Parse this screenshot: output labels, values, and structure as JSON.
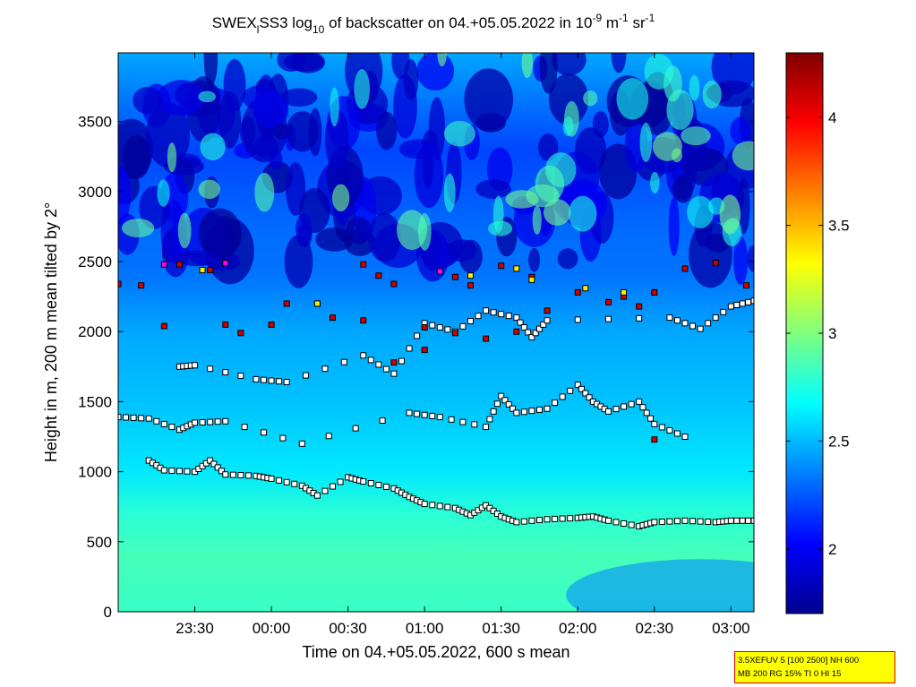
{
  "chart_data": {
    "type": "heatmap",
    "title_parts": {
      "prefix": "SWEX",
      "sub1": "l",
      "mid": "SS3 log",
      "sub2": "10",
      "rest": " of backscatter on 04.+05.05.2022 in 10",
      "exp1": "-9",
      "unit1": " m",
      "exp2": "-1",
      "unit2": " sr",
      "exp3": "-1"
    },
    "xlabel": "Time on 04.+05.05.2022, 600 s mean",
    "ylabel": "Height in m, 200 m mean tilted by 2°",
    "xlim_hours": [
      23.0,
      27.15
    ],
    "ylim": [
      0,
      3990
    ],
    "x_ticks": [
      {
        "hour": 23.5,
        "label": "23:30"
      },
      {
        "hour": 24.0,
        "label": "00:00"
      },
      {
        "hour": 24.5,
        "label": "00:30"
      },
      {
        "hour": 25.0,
        "label": "01:00"
      },
      {
        "hour": 25.5,
        "label": "01:30"
      },
      {
        "hour": 26.0,
        "label": "02:00"
      },
      {
        "hour": 26.5,
        "label": "02:30"
      },
      {
        "hour": 27.0,
        "label": "03:00"
      }
    ],
    "y_ticks": [
      0,
      500,
      1000,
      1500,
      2000,
      2500,
      3000,
      3500
    ],
    "colorbar": {
      "range": [
        1.7,
        4.3
      ],
      "ticks": [
        2,
        2.5,
        3,
        3.5,
        4
      ],
      "colormap": "jet"
    },
    "field_profile": [
      {
        "height": 0,
        "log_backscatter": 2.82
      },
      {
        "height": 400,
        "log_backscatter": 2.85
      },
      {
        "height": 700,
        "log_backscatter": 2.78
      },
      {
        "height": 1000,
        "log_backscatter": 2.62
      },
      {
        "height": 1500,
        "log_backscatter": 2.52
      },
      {
        "height": 2000,
        "log_backscatter": 2.45
      },
      {
        "height": 2400,
        "log_backscatter": 2.32
      },
      {
        "height": 2700,
        "log_backscatter": 2.3
      },
      {
        "height": 3300,
        "log_backscatter": 2.2
      },
      {
        "height": 3990,
        "log_backscatter": 2.45
      }
    ],
    "layer_markers": {
      "description": "detected aerosol/cloud layer heights (white, red, yellow, magenta squares)",
      "colors": {
        "white": "#ffffff",
        "red": "#d00000",
        "yellow": "#ffee00",
        "magenta": "#ff00ff"
      },
      "tracks": [
        {
          "name": "lowest layer",
          "color": "white",
          "points": [
            [
              23.2,
              1080
            ],
            [
              23.3,
              1010
            ],
            [
              23.5,
              1000
            ],
            [
              23.6,
              1080
            ],
            [
              23.7,
              980
            ],
            [
              23.9,
              970
            ],
            [
              24.0,
              950
            ],
            [
              24.2,
              900
            ],
            [
              24.3,
              830
            ],
            [
              24.5,
              960
            ],
            [
              24.6,
              930
            ],
            [
              24.8,
              880
            ],
            [
              24.9,
              820
            ],
            [
              25.0,
              770
            ],
            [
              25.2,
              740
            ],
            [
              25.3,
              690
            ],
            [
              25.4,
              760
            ],
            [
              25.5,
              680
            ],
            [
              25.6,
              640
            ],
            [
              25.8,
              660
            ],
            [
              26.0,
              670
            ],
            [
              26.1,
              680
            ],
            [
              26.2,
              650
            ],
            [
              26.4,
              610
            ],
            [
              26.5,
              640
            ],
            [
              26.7,
              650
            ],
            [
              26.9,
              640
            ],
            [
              27.0,
              650
            ],
            [
              27.15,
              650
            ]
          ]
        },
        {
          "name": "layer 1400 m",
          "color": "white",
          "points": [
            [
              23.0,
              1390
            ],
            [
              23.2,
              1380
            ],
            [
              23.4,
              1300
            ],
            [
              23.5,
              1350
            ],
            [
              23.7,
              1360
            ],
            [
              24.2,
              1200
            ],
            [
              24.9,
              1420
            ],
            [
              25.1,
              1390
            ],
            [
              25.4,
              1320
            ],
            [
              25.5,
              1540
            ],
            [
              25.6,
              1420
            ],
            [
              25.8,
              1450
            ],
            [
              26.0,
              1620
            ],
            [
              26.1,
              1500
            ],
            [
              26.2,
              1430
            ],
            [
              26.4,
              1500
            ],
            [
              26.5,
              1340
            ],
            [
              26.7,
              1250
            ]
          ]
        },
        {
          "name": "layer 1700 m",
          "color": "white",
          "points": [
            [
              23.4,
              1750
            ],
            [
              23.5,
              1760
            ],
            [
              23.9,
              1660
            ],
            [
              24.1,
              1640
            ],
            [
              24.6,
              1830
            ],
            [
              24.8,
              1700
            ],
            [
              25.0,
              2060
            ],
            [
              25.2,
              2000
            ],
            [
              25.4,
              2150
            ],
            [
              25.6,
              2100
            ],
            [
              25.7,
              1960
            ],
            [
              25.8,
              2080
            ],
            [
              26.6,
              2100
            ],
            [
              26.8,
              2020
            ],
            [
              27.0,
              2180
            ],
            [
              27.15,
              2220
            ]
          ]
        },
        {
          "name": "layer 2000-2500 m",
          "color": "red",
          "points": [
            [
              23.0,
              2340
            ],
            [
              23.15,
              2330
            ],
            [
              23.3,
              2040
            ],
            [
              23.4,
              2480
            ],
            [
              23.6,
              2440
            ],
            [
              23.7,
              2050
            ],
            [
              23.8,
              1990
            ],
            [
              24.0,
              2050
            ],
            [
              24.1,
              2200
            ],
            [
              24.3,
              2200
            ],
            [
              24.4,
              2100
            ],
            [
              24.6,
              2480
            ],
            [
              24.7,
              2400
            ],
            [
              24.8,
              2340
            ],
            [
              25.0,
              2030
            ],
            [
              25.2,
              2390
            ],
            [
              25.3,
              2330
            ],
            [
              25.5,
              2470
            ],
            [
              25.7,
              2390
            ],
            [
              26.0,
              2280
            ],
            [
              26.2,
              2210
            ],
            [
              26.4,
              2180
            ],
            [
              26.5,
              2280
            ],
            [
              26.7,
              2450
            ],
            [
              26.9,
              2490
            ],
            [
              27.1,
              2330
            ]
          ]
        },
        {
          "name": "mid-level red points",
          "color": "red",
          "points": [
            [
              24.6,
              2080
            ],
            [
              24.8,
              1780
            ],
            [
              25.0,
              1870
            ],
            [
              25.2,
              1990
            ],
            [
              25.4,
              1950
            ],
            [
              25.6,
              2000
            ],
            [
              25.8,
              2150
            ],
            [
              26.3,
              2250
            ],
            [
              26.5,
              1230
            ]
          ]
        },
        {
          "name": "yellow points",
          "color": "yellow",
          "points": [
            [
              23.55,
              2440
            ],
            [
              24.3,
              2200
            ],
            [
              25.3,
              2400
            ],
            [
              25.6,
              2450
            ],
            [
              25.7,
              2370
            ],
            [
              26.3,
              2280
            ],
            [
              26.05,
              2310
            ]
          ]
        },
        {
          "name": "magenta points",
          "color": "magenta",
          "points": [
            [
              23.3,
              2480
            ],
            [
              23.7,
              2490
            ],
            [
              25.1,
              2430
            ]
          ]
        }
      ]
    }
  },
  "info_box": {
    "line1": "3.5XEFUV 5 [100 2500] NH 600",
    "line2": "MB 200 RG 15% TI 0 HI 15"
  }
}
